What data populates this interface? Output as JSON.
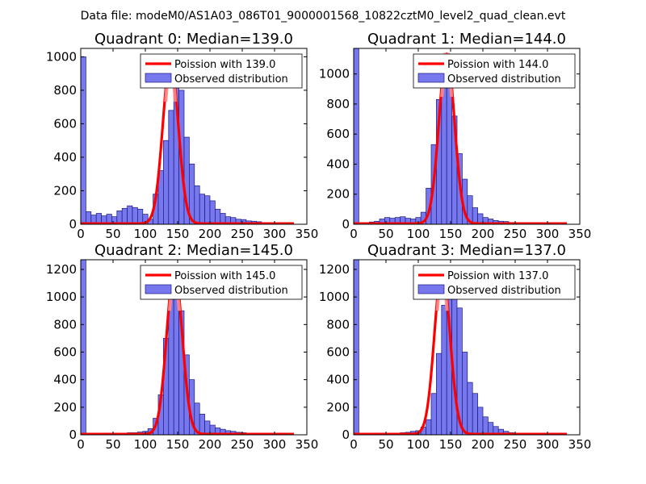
{
  "figure": {
    "suptitle": "Data file: modeM0/AS1A03_086T01_9000001568_10822cztM0_level2_quad_clean.evt",
    "colors": {
      "bar_fill": "#7777ee",
      "bar_edge": "#1a1a80",
      "curve": "#ff0000",
      "curve_highlight": "#ff8a8a",
      "axes": "#000000",
      "legend_edge": "#000000"
    }
  },
  "chart_data": [
    {
      "type": "bar",
      "title": "Quadrant 0: Median=139.0",
      "xlim": [
        0,
        350
      ],
      "ylim": [
        0,
        1050
      ],
      "xticks": [
        0,
        50,
        100,
        150,
        200,
        250,
        300,
        350
      ],
      "yticks": [
        0,
        200,
        400,
        600,
        800,
        1000
      ],
      "bin_width": 8,
      "bin_start": 0,
      "values": [
        1000,
        75,
        55,
        65,
        50,
        60,
        45,
        80,
        95,
        110,
        100,
        90,
        60,
        30,
        180,
        320,
        500,
        680,
        870,
        800,
        520,
        360,
        230,
        180,
        170,
        140,
        90,
        65,
        45,
        40,
        30,
        28,
        20,
        18,
        15,
        10,
        8,
        5,
        4,
        3,
        2
      ],
      "series": [
        {
          "name": "Observed distribution",
          "kind": "histogram"
        },
        {
          "name": "Poission with 139.0",
          "kind": "poisson",
          "mean": 139.0,
          "peak": 975,
          "sigma": 12
        }
      ],
      "legend": [
        "Poission with 139.0",
        "Observed distribution"
      ],
      "legend_position": "upper right"
    },
    {
      "type": "bar",
      "title": "Quadrant 1: Median=144.0",
      "xlim": [
        0,
        350
      ],
      "ylim": [
        0,
        1170
      ],
      "xticks": [
        0,
        50,
        100,
        150,
        200,
        250,
        300,
        350
      ],
      "yticks": [
        0,
        200,
        400,
        600,
        800,
        1000
      ],
      "bin_width": 8,
      "bin_start": 0,
      "values": [
        1170,
        5,
        10,
        15,
        20,
        35,
        45,
        40,
        45,
        50,
        40,
        35,
        45,
        80,
        240,
        530,
        830,
        1030,
        960,
        720,
        470,
        300,
        190,
        110,
        70,
        45,
        35,
        25,
        20,
        18,
        12,
        10,
        8,
        6,
        5,
        4,
        3,
        2,
        2,
        1,
        1
      ],
      "series": [
        {
          "name": "Observed distribution",
          "kind": "histogram"
        },
        {
          "name": "Poission with 144.0",
          "kind": "poisson",
          "mean": 144.0,
          "peak": 1130,
          "sigma": 12
        }
      ],
      "legend": [
        "Poission with 144.0",
        "Observed distribution"
      ],
      "legend_position": "upper right"
    },
    {
      "type": "bar",
      "title": "Quadrant 2: Median=145.0",
      "xlim": [
        0,
        350
      ],
      "ylim": [
        0,
        1270
      ],
      "xticks": [
        0,
        50,
        100,
        150,
        200,
        250,
        300,
        350
      ],
      "yticks": [
        0,
        200,
        400,
        600,
        800,
        1000,
        1200
      ],
      "bin_width": 8,
      "bin_start": 0,
      "values": [
        1270,
        5,
        5,
        5,
        5,
        8,
        8,
        10,
        12,
        15,
        15,
        20,
        25,
        45,
        120,
        290,
        700,
        1000,
        1210,
        900,
        580,
        400,
        230,
        150,
        100,
        70,
        50,
        40,
        30,
        25,
        18,
        15,
        12,
        10,
        8,
        6,
        5,
        4,
        3,
        2,
        2
      ],
      "series": [
        {
          "name": "Observed distribution",
          "kind": "histogram"
        },
        {
          "name": "Poission with 145.0",
          "kind": "poisson",
          "mean": 145.0,
          "peak": 1200,
          "sigma": 12
        }
      ],
      "legend": [
        "Poission with 145.0",
        "Observed distribution"
      ],
      "legend_position": "upper right"
    },
    {
      "type": "bar",
      "title": "Quadrant 3: Median=137.0",
      "xlim": [
        0,
        350
      ],
      "ylim": [
        0,
        1270
      ],
      "xticks": [
        0,
        50,
        100,
        150,
        200,
        250,
        300,
        350
      ],
      "yticks": [
        0,
        200,
        400,
        600,
        800,
        1000,
        1200
      ],
      "bin_width": 8,
      "bin_start": 0,
      "values": [
        1270,
        5,
        5,
        5,
        5,
        8,
        8,
        10,
        12,
        15,
        18,
        25,
        30,
        55,
        110,
        300,
        590,
        940,
        1150,
        1090,
        920,
        600,
        380,
        300,
        200,
        130,
        90,
        60,
        40,
        25,
        15,
        12,
        10,
        8,
        6,
        5,
        4,
        3,
        2,
        2,
        1
      ],
      "series": [
        {
          "name": "Observed distribution",
          "kind": "histogram"
        },
        {
          "name": "Poission with 137.0",
          "kind": "poisson",
          "mean": 137.0,
          "peak": 1200,
          "sigma": 12
        }
      ],
      "legend": [
        "Poission with 137.0",
        "Observed distribution"
      ],
      "legend_position": "upper right"
    }
  ]
}
